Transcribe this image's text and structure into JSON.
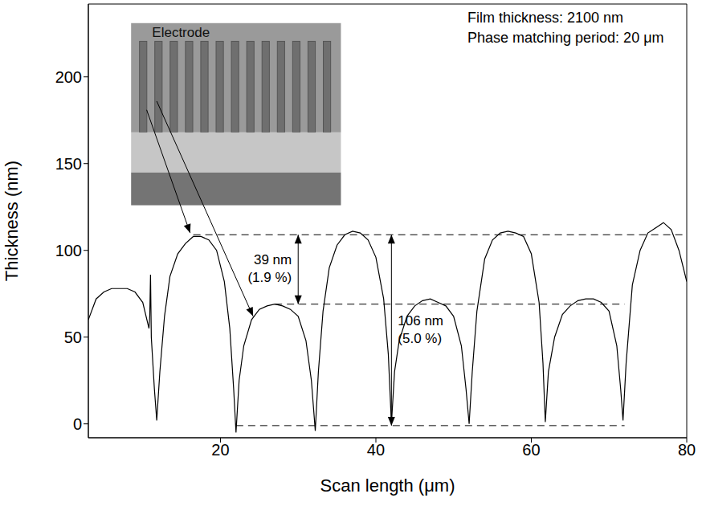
{
  "chart_data": {
    "type": "line",
    "x_label": "Scan length (μm)",
    "y_label": "Thickness (nm)",
    "xlim": [
      3,
      80
    ],
    "ylim": [
      -8,
      242
    ],
    "xticks": [
      20,
      40,
      60,
      80
    ],
    "yticks": [
      0,
      50,
      100,
      150,
      200
    ],
    "grid": false,
    "color": "#000000",
    "line_style": "solid",
    "text_box": [
      "Film thickness: 2100 nm",
      "Phase matching period: 20 μm"
    ],
    "inset_label": "Electrode",
    "x": [
      3,
      4,
      5,
      6,
      7,
      8,
      9,
      10,
      10.8,
      10.9,
      11.0,
      11.1,
      11.5,
      11.8,
      12.2,
      12.8,
      13.5,
      14.5,
      15.5,
      16.5,
      17.5,
      18.5,
      19.5,
      20.5,
      21.2,
      21.7,
      22.0,
      22.4,
      23,
      24,
      25,
      26,
      27,
      28,
      29,
      30,
      31,
      31.7,
      32.2,
      32.6,
      33.2,
      34,
      35,
      36,
      37,
      38,
      39,
      40,
      41,
      41.6,
      42,
      42.4,
      43,
      44,
      45,
      46,
      47,
      48,
      49,
      50,
      51,
      51.6,
      52,
      52.4,
      53,
      54,
      55,
      56,
      57,
      58,
      59,
      60,
      61,
      61.5,
      61.8,
      62.2,
      63,
      64,
      65,
      66,
      67,
      68,
      69,
      70,
      71,
      71.5,
      71.8,
      72.2,
      73,
      74,
      75,
      76,
      77,
      78,
      79,
      80
    ],
    "values": [
      60,
      72,
      76,
      78,
      78,
      78,
      76,
      70,
      55,
      62,
      86,
      50,
      20,
      2,
      30,
      62,
      85,
      98,
      104,
      108,
      108,
      106,
      100,
      82,
      55,
      20,
      -5,
      25,
      45,
      60,
      66,
      68,
      69,
      68,
      66,
      62,
      48,
      25,
      -4,
      30,
      65,
      90,
      103,
      109,
      111,
      110,
      106,
      96,
      72,
      40,
      0,
      30,
      48,
      62,
      68,
      71,
      72,
      70,
      68,
      62,
      45,
      20,
      0,
      30,
      65,
      95,
      106,
      110,
      111,
      110,
      108,
      98,
      70,
      35,
      1,
      30,
      50,
      63,
      68,
      71,
      72,
      72,
      70,
      65,
      45,
      20,
      2,
      35,
      80,
      100,
      110,
      113,
      116,
      112,
      100,
      82
    ],
    "reference_lines": [
      {
        "y": 109,
        "x_from": 16.5,
        "x_to": 80
      },
      {
        "y": 69,
        "x_from": 27,
        "x_to": 72
      },
      {
        "y": -1,
        "x_from": 22,
        "x_to": 72
      }
    ],
    "annotations": [
      {
        "text": "39 nm",
        "subtext": "(1.9 %)",
        "x": 30,
        "y_from": 69,
        "y_to": 109
      },
      {
        "text": "106 nm",
        "subtext": "(5.0 %)",
        "x": 42,
        "y_from": -1,
        "y_to": 109
      }
    ]
  }
}
